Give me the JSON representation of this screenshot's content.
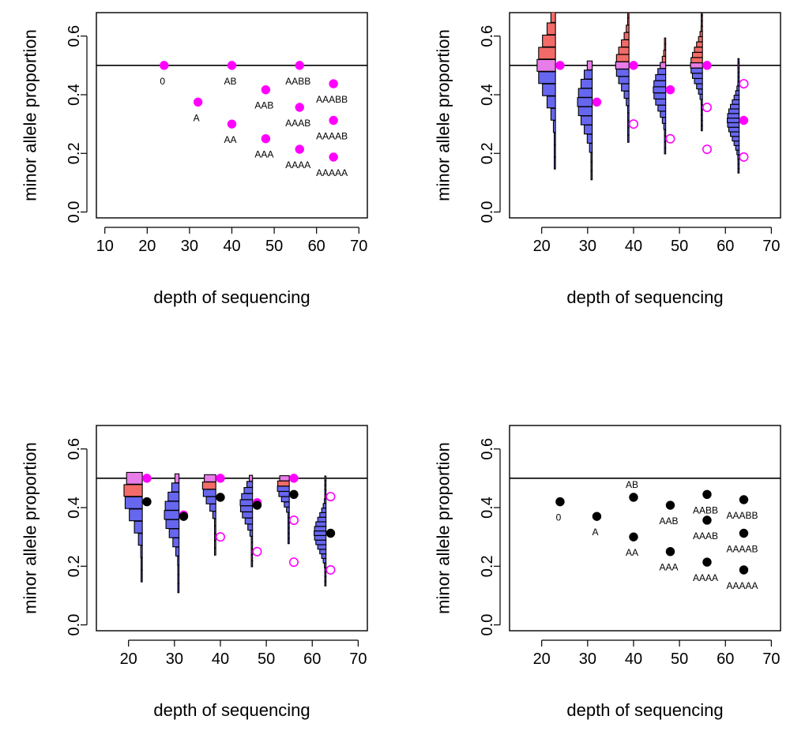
{
  "colors": {
    "magenta": "#ff00ff",
    "point_black": "#000000",
    "hist_red": "#f26b68",
    "hist_blue": "#6666ee",
    "hist_pink": "#e87ce8",
    "line": "#000000"
  },
  "chart_data": [
    {
      "type": "scatter",
      "panel": "top-left",
      "xlabel": "depth of sequencing",
      "ylabel": "minor allele proportion",
      "xlim": [
        8,
        72
      ],
      "ylim": [
        -0.02,
        0.68
      ],
      "xticks": [
        10,
        20,
        30,
        40,
        50,
        60,
        70
      ],
      "yticks": [
        0.0,
        0.2,
        0.4,
        0.6
      ],
      "hline": 0.5,
      "points": [
        {
          "x": 24,
          "y": 0.5,
          "label": "0",
          "style": "magenta-filled"
        },
        {
          "x": 32,
          "y": 0.375,
          "label": "A",
          "style": "magenta-filled"
        },
        {
          "x": 40,
          "y": 0.5,
          "label": "AB",
          "style": "magenta-filled"
        },
        {
          "x": 40,
          "y": 0.3,
          "label": "AA",
          "style": "magenta-filled"
        },
        {
          "x": 48,
          "y": 0.417,
          "label": "AAB",
          "style": "magenta-filled"
        },
        {
          "x": 48,
          "y": 0.25,
          "label": "AAA",
          "style": "magenta-filled"
        },
        {
          "x": 56,
          "y": 0.5,
          "label": "AABB",
          "style": "magenta-filled"
        },
        {
          "x": 56,
          "y": 0.357,
          "label": "AAAB",
          "style": "magenta-filled"
        },
        {
          "x": 56,
          "y": 0.214,
          "label": "AAAA",
          "style": "magenta-filled"
        },
        {
          "x": 64,
          "y": 0.4375,
          "label": "AAABB",
          "style": "magenta-filled"
        },
        {
          "x": 64,
          "y": 0.3125,
          "label": "AAAAB",
          "style": "magenta-filled"
        },
        {
          "x": 64,
          "y": 0.1875,
          "label": "AAAAA",
          "style": "magenta-filled"
        }
      ]
    },
    {
      "type": "histogram-violin",
      "panel": "top-right",
      "xlabel": "depth of sequencing",
      "ylabel": "minor allele proportion",
      "xlim": [
        13,
        72
      ],
      "ylim": [
        -0.02,
        0.68
      ],
      "xticks": [
        20,
        30,
        40,
        50,
        60,
        70
      ],
      "yticks": [
        0.0,
        0.2,
        0.4,
        0.6
      ],
      "hline": 0.5,
      "points": [
        {
          "x": 24,
          "y": 0.5,
          "style": "magenta-filled"
        },
        {
          "x": 32,
          "y": 0.375,
          "style": "magenta-filled"
        },
        {
          "x": 40,
          "y": 0.5,
          "style": "magenta-filled"
        },
        {
          "x": 40,
          "y": 0.3,
          "style": "magenta-open"
        },
        {
          "x": 48,
          "y": 0.417,
          "style": "magenta-filled"
        },
        {
          "x": 48,
          "y": 0.25,
          "style": "magenta-open"
        },
        {
          "x": 56,
          "y": 0.5,
          "style": "magenta-filled"
        },
        {
          "x": 56,
          "y": 0.357,
          "style": "magenta-open"
        },
        {
          "x": 56,
          "y": 0.214,
          "style": "magenta-open"
        },
        {
          "x": 64,
          "y": 0.4375,
          "style": "magenta-open"
        },
        {
          "x": 64,
          "y": 0.3125,
          "style": "magenta-filled"
        },
        {
          "x": 64,
          "y": 0.1875,
          "style": "magenta-open"
        }
      ],
      "distributions": [
        {
          "depth": 24,
          "base_x": 23,
          "center": 0.5,
          "sd": 0.1,
          "scale": 4,
          "red_above": true,
          "red_below": false,
          "y_min": 0.15,
          "y_max": 0.68
        },
        {
          "depth": 32,
          "base_x": 31,
          "center": 0.375,
          "sd": 0.085,
          "scale": 3.2,
          "red_above": false,
          "red_below": false,
          "y_min": 0.11,
          "y_max": 0.51
        },
        {
          "depth": 40,
          "base_x": 39,
          "center": 0.5,
          "sd": 0.07,
          "scale": 2.9,
          "red_above": true,
          "red_below": false,
          "y_min": 0.24,
          "y_max": 0.68
        },
        {
          "depth": 48,
          "base_x": 47,
          "center": 0.417,
          "sd": 0.065,
          "scale": 2.7,
          "red_above": true,
          "red_below": false,
          "y_min": 0.2,
          "y_max": 0.6
        },
        {
          "depth": 56,
          "base_x": 55,
          "center": 0.5,
          "sd": 0.06,
          "scale": 2.6,
          "red_above": true,
          "red_below": false,
          "y_min": 0.27,
          "y_max": 0.68
        },
        {
          "depth": 64,
          "base_x": 63,
          "center": 0.3125,
          "sd": 0.06,
          "scale": 2.6,
          "red_above": false,
          "red_below": false,
          "y_min": 0.13,
          "y_max": 0.52
        }
      ]
    },
    {
      "type": "histogram-violin",
      "panel": "bottom-left",
      "xlabel": "depth of sequencing",
      "ylabel": "minor allele proportion",
      "xlim": [
        13,
        72
      ],
      "ylim": [
        -0.02,
        0.68
      ],
      "xticks": [
        20,
        30,
        40,
        50,
        60,
        70
      ],
      "yticks": [
        0.0,
        0.2,
        0.4,
        0.6
      ],
      "hline": 0.5,
      "points": [
        {
          "x": 24,
          "y": 0.5,
          "style": "magenta-filled"
        },
        {
          "x": 24,
          "y": 0.42,
          "style": "black-filled"
        },
        {
          "x": 32,
          "y": 0.375,
          "style": "magenta-filled"
        },
        {
          "x": 32,
          "y": 0.37,
          "style": "black-filled"
        },
        {
          "x": 40,
          "y": 0.5,
          "style": "magenta-filled"
        },
        {
          "x": 40,
          "y": 0.435,
          "style": "black-filled"
        },
        {
          "x": 40,
          "y": 0.3,
          "style": "magenta-open"
        },
        {
          "x": 48,
          "y": 0.417,
          "style": "magenta-filled"
        },
        {
          "x": 48,
          "y": 0.408,
          "style": "black-filled"
        },
        {
          "x": 48,
          "y": 0.25,
          "style": "magenta-open"
        },
        {
          "x": 56,
          "y": 0.5,
          "style": "magenta-filled"
        },
        {
          "x": 56,
          "y": 0.445,
          "style": "black-filled"
        },
        {
          "x": 56,
          "y": 0.357,
          "style": "magenta-open"
        },
        {
          "x": 56,
          "y": 0.214,
          "style": "magenta-open"
        },
        {
          "x": 64,
          "y": 0.4375,
          "style": "magenta-open"
        },
        {
          "x": 64,
          "y": 0.3125,
          "style": "black-filled"
        },
        {
          "x": 64,
          "y": 0.1875,
          "style": "magenta-open"
        }
      ],
      "distributions": [
        {
          "depth": 24,
          "base_x": 23,
          "center": 0.45,
          "sd": 0.09,
          "scale": 4,
          "red_above": false,
          "red_below": true,
          "y_min": 0.15,
          "y_max": 0.5
        },
        {
          "depth": 32,
          "base_x": 31,
          "center": 0.38,
          "sd": 0.075,
          "scale": 3.2,
          "red_above": false,
          "red_below": false,
          "y_min": 0.11,
          "y_max": 0.51
        },
        {
          "depth": 40,
          "base_x": 39,
          "center": 0.47,
          "sd": 0.055,
          "scale": 2.9,
          "red_above": false,
          "red_below": true,
          "y_min": 0.24,
          "y_max": 0.5
        },
        {
          "depth": 48,
          "base_x": 47,
          "center": 0.41,
          "sd": 0.055,
          "scale": 2.7,
          "red_above": false,
          "red_below": false,
          "y_min": 0.2,
          "y_max": 0.5
        },
        {
          "depth": 56,
          "base_x": 55,
          "center": 0.47,
          "sd": 0.045,
          "scale": 2.6,
          "red_above": false,
          "red_below": true,
          "y_min": 0.27,
          "y_max": 0.5
        },
        {
          "depth": 64,
          "base_x": 63,
          "center": 0.3125,
          "sd": 0.055,
          "scale": 2.6,
          "red_above": false,
          "red_below": false,
          "y_min": 0.13,
          "y_max": 0.5
        }
      ]
    },
    {
      "type": "scatter",
      "panel": "bottom-right",
      "xlabel": "depth of sequencing",
      "ylabel": "minor allele proportion",
      "xlim": [
        13,
        72
      ],
      "ylim": [
        -0.02,
        0.68
      ],
      "xticks": [
        20,
        30,
        40,
        50,
        60,
        70
      ],
      "yticks": [
        0.0,
        0.2,
        0.4,
        0.6
      ],
      "hline": 0.5,
      "points": [
        {
          "x": 24,
          "y": 0.42,
          "label": "0",
          "style": "black-filled"
        },
        {
          "x": 32,
          "y": 0.37,
          "label": "A",
          "style": "black-filled"
        },
        {
          "x": 40,
          "y": 0.435,
          "label": "AB",
          "label_pos": "above",
          "style": "black-filled"
        },
        {
          "x": 40,
          "y": 0.3,
          "label": "AA",
          "style": "black-filled"
        },
        {
          "x": 48,
          "y": 0.408,
          "label": "AAB",
          "style": "black-filled"
        },
        {
          "x": 48,
          "y": 0.25,
          "label": "AAA",
          "style": "black-filled"
        },
        {
          "x": 56,
          "y": 0.445,
          "label": "AABB",
          "style": "black-filled"
        },
        {
          "x": 56,
          "y": 0.357,
          "label": "AAAB",
          "style": "black-filled"
        },
        {
          "x": 56,
          "y": 0.214,
          "label": "AAAA",
          "style": "black-filled"
        },
        {
          "x": 64,
          "y": 0.427,
          "label": "AAABB",
          "style": "black-filled"
        },
        {
          "x": 64,
          "y": 0.3125,
          "label": "AAAAB",
          "style": "black-filled"
        },
        {
          "x": 64,
          "y": 0.1875,
          "label": "AAAAA",
          "style": "black-filled"
        }
      ]
    }
  ]
}
